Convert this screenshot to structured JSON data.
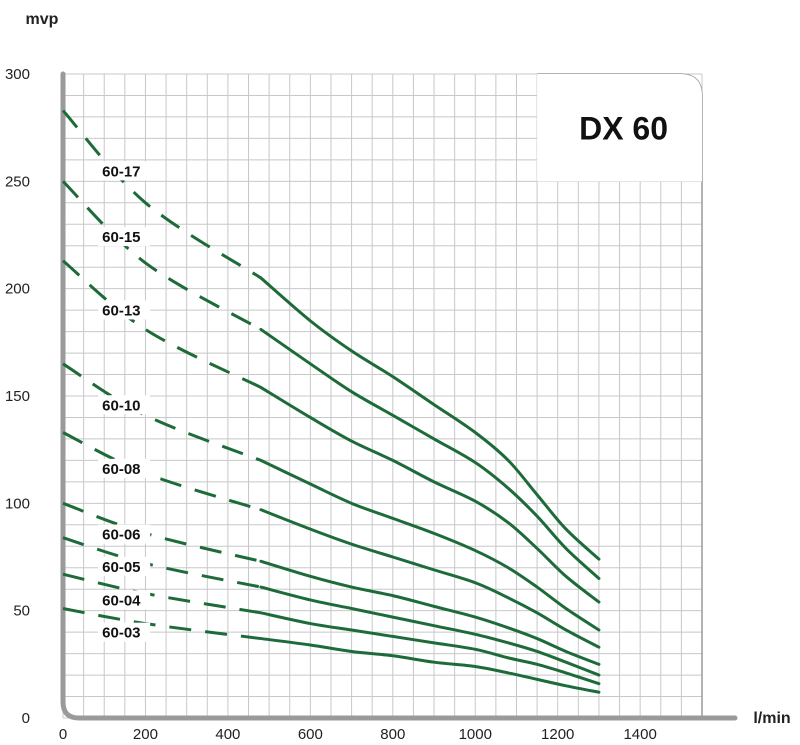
{
  "chart_data": {
    "type": "line",
    "title": "DX 60",
    "ylabel": "mvp",
    "xlabel": "l/min",
    "xlim": [
      0,
      1550
    ],
    "ylim": [
      0,
      300
    ],
    "x_ticks": [
      0,
      200,
      400,
      600,
      800,
      1000,
      1200,
      1400
    ],
    "y_ticks": [
      0,
      50,
      100,
      150,
      200,
      250,
      300
    ],
    "grid": true,
    "line_color": "#1e6b3a",
    "grid_color": "#c8c8c8",
    "axis_color": "#9a9a9a",
    "dashed_until": 480,
    "series": [
      {
        "name": "60-17",
        "label_x": 95,
        "x": [
          0,
          200,
          480,
          600,
          700,
          800,
          900,
          1000,
          1080,
          1150,
          1220,
          1300
        ],
        "y": [
          283,
          240,
          205,
          185,
          171,
          159,
          146,
          133,
          120,
          104,
          88,
          74
        ]
      },
      {
        "name": "60-15",
        "label_x": 95,
        "x": [
          0,
          200,
          480,
          600,
          700,
          800,
          900,
          1000,
          1080,
          1150,
          1220,
          1300
        ],
        "y": [
          250,
          212,
          181,
          165,
          152,
          141,
          130,
          119,
          107,
          94,
          79,
          65
        ]
      },
      {
        "name": "60-13",
        "label_x": 95,
        "x": [
          0,
          200,
          480,
          600,
          700,
          800,
          900,
          1000,
          1080,
          1150,
          1220,
          1300
        ],
        "y": [
          213,
          181,
          154,
          140,
          129,
          120,
          110,
          101,
          91,
          79,
          66,
          54
        ]
      },
      {
        "name": "60-10",
        "label_x": 95,
        "x": [
          0,
          200,
          480,
          600,
          700,
          800,
          900,
          1000,
          1080,
          1150,
          1220,
          1300
        ],
        "y": [
          165,
          141,
          120,
          109,
          100,
          93,
          86,
          78,
          70,
          61,
          51,
          41
        ]
      },
      {
        "name": "60-08",
        "label_x": 95,
        "x": [
          0,
          200,
          480,
          600,
          700,
          800,
          900,
          1000,
          1080,
          1150,
          1220,
          1300
        ],
        "y": [
          133,
          114,
          97,
          88,
          81,
          75,
          69,
          63,
          56,
          49,
          41,
          33
        ]
      },
      {
        "name": "60-06",
        "label_x": 95,
        "x": [
          0,
          200,
          480,
          600,
          700,
          800,
          900,
          1000,
          1080,
          1150,
          1220,
          1300
        ],
        "y": [
          100,
          86,
          73,
          66,
          61,
          57,
          52,
          47,
          42,
          37,
          31,
          25
        ]
      },
      {
        "name": "60-05",
        "label_x": 95,
        "x": [
          0,
          200,
          480,
          600,
          700,
          800,
          900,
          1000,
          1080,
          1150,
          1220,
          1300
        ],
        "y": [
          84,
          72,
          61,
          55,
          51,
          47,
          43,
          39,
          35,
          31,
          26,
          20
        ]
      },
      {
        "name": "60-04",
        "label_x": 95,
        "x": [
          0,
          200,
          480,
          600,
          700,
          800,
          900,
          1000,
          1080,
          1150,
          1220,
          1300
        ],
        "y": [
          67,
          58,
          49,
          44,
          41,
          38,
          35,
          32,
          28,
          25,
          21,
          16
        ]
      },
      {
        "name": "60-03",
        "label_x": 95,
        "x": [
          0,
          200,
          480,
          600,
          700,
          800,
          900,
          1000,
          1080,
          1150,
          1220,
          1300
        ],
        "y": [
          51,
          44,
          37,
          34,
          31,
          29,
          26,
          24,
          21,
          18,
          15,
          12
        ]
      }
    ]
  }
}
